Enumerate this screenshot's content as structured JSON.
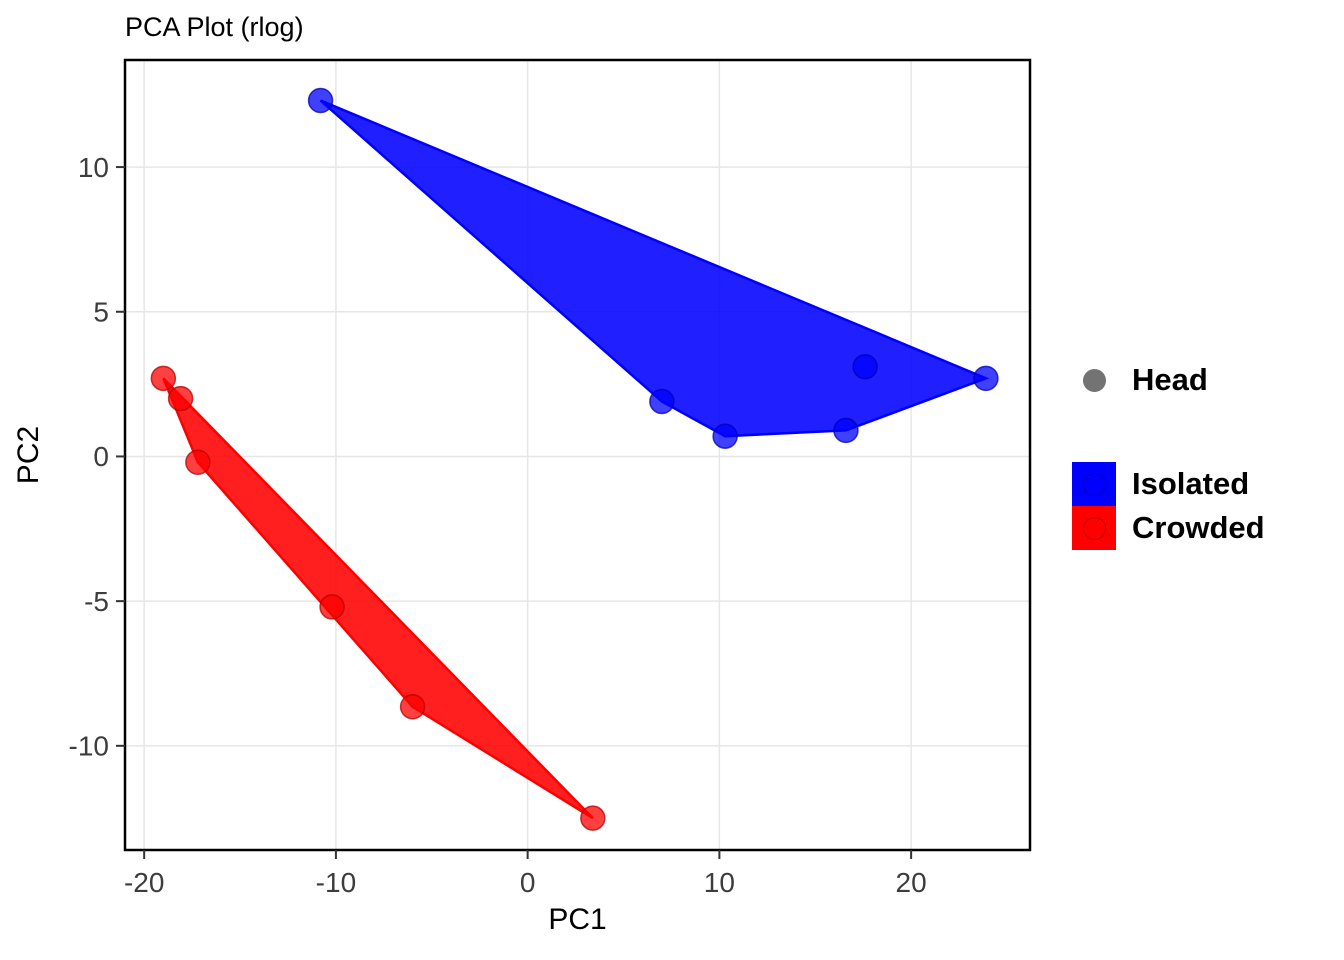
{
  "chart_data": {
    "type": "scatter",
    "title": "PCA Plot (rlog)",
    "xlabel": "PC1",
    "ylabel": "PC2",
    "xlim": [
      -21,
      26.2
    ],
    "ylim": [
      -13.6,
      13.7
    ],
    "xticks": [
      -20,
      -10,
      0,
      10,
      20
    ],
    "yticks": [
      -10,
      -5,
      0,
      5,
      10
    ],
    "grid": true,
    "legend_position": "right",
    "series": [
      {
        "name": "Isolated",
        "color": "#0000ff",
        "stroke": "#0000b3",
        "points": [
          [
            -10.8,
            12.3
          ],
          [
            7.0,
            1.9
          ],
          [
            10.3,
            0.7
          ],
          [
            16.6,
            0.9
          ],
          [
            17.6,
            3.1
          ],
          [
            23.9,
            2.7
          ]
        ],
        "hull": [
          [
            -10.8,
            12.3
          ],
          [
            7.0,
            1.9
          ],
          [
            10.3,
            0.7
          ],
          [
            16.6,
            0.9
          ],
          [
            23.9,
            2.7
          ]
        ]
      },
      {
        "name": "Crowded",
        "color": "#ff0000",
        "stroke": "#b30000",
        "points": [
          [
            -19.0,
            2.7
          ],
          [
            -18.1,
            2.0
          ],
          [
            -17.2,
            -0.2
          ],
          [
            -10.2,
            -5.2
          ],
          [
            -6.0,
            -8.65
          ],
          [
            3.4,
            -12.5
          ]
        ],
        "hull": [
          [
            -19.0,
            2.7
          ],
          [
            -17.2,
            -0.2
          ],
          [
            -6.0,
            -8.65
          ],
          [
            3.4,
            -12.5
          ]
        ]
      }
    ],
    "legend": {
      "shape": {
        "label": "Head",
        "color": "#737373"
      },
      "fill": [
        {
          "label": "Isolated",
          "color": "#0000ff"
        },
        {
          "label": "Crowded",
          "color": "#ff0000"
        }
      ]
    }
  }
}
